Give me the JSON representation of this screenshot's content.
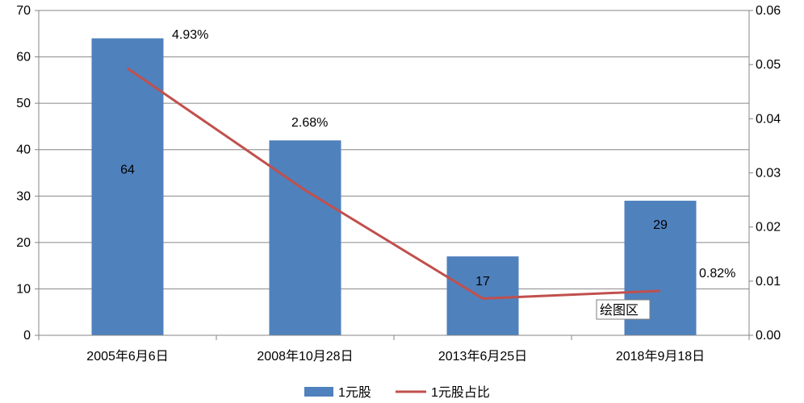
{
  "chart_data": {
    "type": "bar",
    "categories": [
      "2005年6月6日",
      "2008年10月28日",
      "2013年6月25日",
      "2018年9月18日"
    ],
    "series": [
      {
        "name": "1元股",
        "type": "bar",
        "axis": "left",
        "values": [
          64,
          42,
          17,
          29
        ],
        "labels": [
          "64",
          "",
          "17",
          "29"
        ],
        "color": "#4f81bd"
      },
      {
        "name": "1元股占比",
        "type": "line",
        "axis": "right",
        "values": [
          0.0493,
          0.0268,
          0.0068,
          0.0082
        ],
        "labels": [
          "4.93%",
          "2.68%",
          "",
          "0.82%"
        ],
        "color": "#c0504d"
      }
    ],
    "y_left": {
      "min": 0,
      "max": 70,
      "ticks": [
        "0",
        "10",
        "20",
        "30",
        "40",
        "50",
        "60",
        "70"
      ]
    },
    "y_right": {
      "min": 0,
      "max": 0.06,
      "ticks": [
        "0.00",
        "0.01",
        "0.02",
        "0.03",
        "0.04",
        "0.05",
        "0.06"
      ]
    },
    "grid": true,
    "legend": "bottom",
    "tooltip": "绘图区"
  }
}
